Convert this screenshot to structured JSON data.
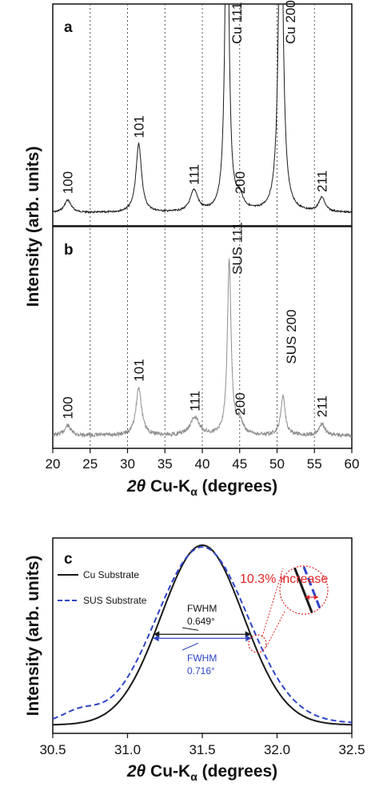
{
  "colors": {
    "cu": "#1a1a1a",
    "sus": "#2f45c8",
    "sus_gray": "#8e8e8e",
    "highlight": "#e02424",
    "gridline": "#555555"
  },
  "top_figure": {
    "ylabel": "Intensity (arb. units)",
    "xlabel_symbol": "2θ",
    "xlabel_rest": " Cu-K",
    "xlabel_sub": "α",
    "xlabel_end": " (degrees)"
  },
  "panel_c": {
    "legend": {
      "cu": "Cu Substrate",
      "sus": "SUS Substrate"
    },
    "fwhm_cu": {
      "label": "FWHM",
      "value": "0.649°"
    },
    "fwhm_sus": {
      "label": "FWHM",
      "value": "0.716°"
    },
    "increase_note": "10.3% increase"
  },
  "chart_data": [
    {
      "panel": "a",
      "type": "line",
      "xlim": [
        20,
        60
      ],
      "xticks": [
        20,
        25,
        30,
        35,
        40,
        45,
        50,
        55,
        60
      ],
      "dotted_gridlines_x": [
        25,
        30,
        35,
        40,
        45,
        50,
        55
      ],
      "y_ticks_shown": false,
      "peaks": [
        {
          "x": 22.0,
          "height": 0.07,
          "width": 0.55,
          "label": "100"
        },
        {
          "x": 31.5,
          "height": 0.38,
          "width": 0.45,
          "label": "101"
        },
        {
          "x": 38.9,
          "height": 0.12,
          "width": 0.6,
          "label": "111"
        },
        {
          "x": 43.3,
          "height": 2.0,
          "width": 0.3,
          "label": "Cu 111"
        },
        {
          "x": 45.0,
          "height": 0.07,
          "width": 0.55,
          "label": "200"
        },
        {
          "x": 50.5,
          "height": 2.0,
          "width": 0.35,
          "label": "Cu 200"
        },
        {
          "x": 56.0,
          "height": 0.08,
          "width": 0.5,
          "label": "211"
        }
      ]
    },
    {
      "panel": "b",
      "type": "line",
      "xlim": [
        20,
        60
      ],
      "xticks": [
        20,
        25,
        30,
        35,
        40,
        45,
        50,
        55,
        60
      ],
      "dotted_gridlines_x": [
        25,
        30,
        35,
        40,
        45,
        50,
        55
      ],
      "y_ticks_shown": false,
      "peaks": [
        {
          "x": 22.0,
          "height": 0.05,
          "width": 0.5,
          "label": "100"
        },
        {
          "x": 31.5,
          "height": 0.24,
          "width": 0.45,
          "label": "101"
        },
        {
          "x": 39.0,
          "height": 0.09,
          "width": 0.7,
          "label": "111"
        },
        {
          "x": 43.6,
          "height": 0.88,
          "width": 0.3,
          "label": "SUS 111"
        },
        {
          "x": 45.0,
          "height": 0.07,
          "width": 0.45,
          "label": "200"
        },
        {
          "x": 50.8,
          "height": 0.2,
          "width": 0.35,
          "label": "SUS 200"
        },
        {
          "x": 56.0,
          "height": 0.06,
          "width": 0.45,
          "label": "211"
        }
      ]
    },
    {
      "panel": "c",
      "type": "line",
      "xlim": [
        30.5,
        32.5
      ],
      "xticks": [
        30.5,
        31.0,
        31.5,
        32.0,
        32.5
      ],
      "ylim": [
        0,
        1.06
      ],
      "y_ticks_shown": false,
      "series": [
        {
          "name": "Cu Substrate",
          "style": "solid",
          "center": 31.5,
          "fwhm": 0.649
        },
        {
          "name": "SUS Substrate",
          "style": "dashed",
          "center": 31.5,
          "fwhm": 0.716
        }
      ]
    }
  ]
}
